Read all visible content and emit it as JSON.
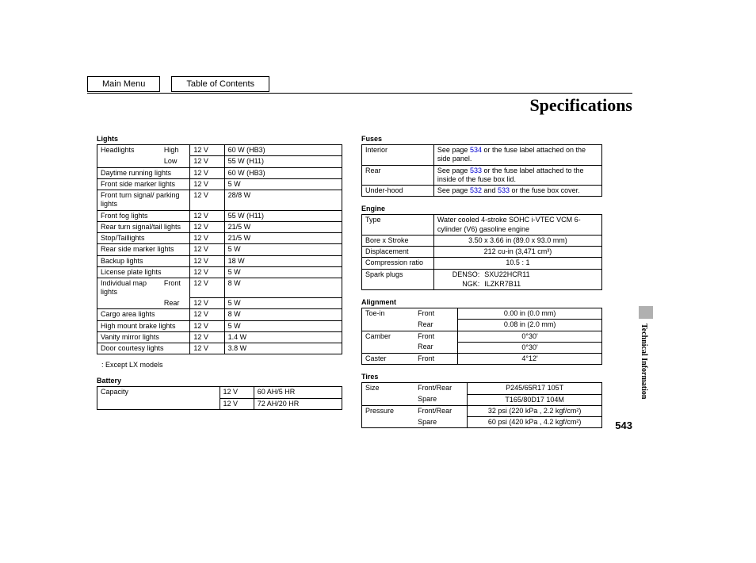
{
  "nav": {
    "main": "Main Menu",
    "toc": "Table of Contents"
  },
  "title": "Specifications",
  "side_label": "Technical Information",
  "page_number": "543",
  "lights": {
    "head": "Lights",
    "rows": [
      {
        "name": "Headlights",
        "sub": "High",
        "v": "12 V",
        "w": "60 W (HB3)"
      },
      {
        "name": "",
        "sub": "Low",
        "v": "12 V",
        "w": "55 W (H11)"
      },
      {
        "name": "Daytime running lights",
        "sub": "",
        "v": "12 V",
        "w": "60 W (HB3)"
      },
      {
        "name": "Front side marker lights",
        "sub": "",
        "v": "12 V",
        "w": "5 W"
      },
      {
        "name": "Front turn signal/ parking lights",
        "sub": "",
        "v": "12 V",
        "w": "28/8 W"
      },
      {
        "name": "Front fog lights",
        "sub": "",
        "v": "12 V",
        "w": "55 W (H11)"
      },
      {
        "name": "Rear turn signal/tail lights",
        "sub": "",
        "v": "12 V",
        "w": "21/5 W"
      },
      {
        "name": "Stop/Taillights",
        "sub": "",
        "v": "12 V",
        "w": "21/5 W"
      },
      {
        "name": "Rear side marker lights",
        "sub": "",
        "v": "12 V",
        "w": "5 W"
      },
      {
        "name": "Backup lights",
        "sub": "",
        "v": "12 V",
        "w": "18 W"
      },
      {
        "name": "License plate lights",
        "sub": "",
        "v": "12 V",
        "w": "5 W"
      },
      {
        "name": "Individual map lights",
        "sub": "Front",
        "v": "12 V",
        "w": "8 W"
      },
      {
        "name": "",
        "sub": "Rear",
        "v": "12 V",
        "w": "5 W"
      },
      {
        "name": "Cargo area lights",
        "sub": "",
        "v": "12 V",
        "w": "8 W"
      },
      {
        "name": "High mount brake lights",
        "sub": "",
        "v": "12 V",
        "w": "5 W"
      },
      {
        "name": "Vanity mirror lights",
        "sub": "",
        "v": "12 V",
        "w": "1.4 W"
      },
      {
        "name": "Door courtesy lights",
        "sub": "",
        "v": "12 V",
        "w": "3.8 W"
      }
    ],
    "footnote": ": Except LX models"
  },
  "battery": {
    "head": "Battery",
    "rows": [
      {
        "name": "Capacity",
        "v": "12 V",
        "w": "60 AH/5 HR"
      },
      {
        "name": "",
        "v": "12 V",
        "w": "72 AH/20 HR"
      }
    ]
  },
  "fuses": {
    "head": "Fuses",
    "rows": [
      {
        "name": "Interior",
        "pre": "See page ",
        "link": "534",
        "post": " or the fuse label attached on the side panel."
      },
      {
        "name": "Rear",
        "pre": "See page ",
        "link": "533",
        "post": " or the fuse label attached to the inside of the fuse box lid."
      },
      {
        "name": "Under-hood",
        "pre": "See page ",
        "link": "532",
        "mid": " and ",
        "link2": "533",
        "post": " or the fuse box cover."
      }
    ]
  },
  "engine": {
    "head": "Engine",
    "type_label": "Type",
    "type_val": "Water cooled 4-stroke SOHC i-VTEC VCM 6-cylinder (V6) gasoline engine",
    "bore_label": "Bore x Stroke",
    "bore_val": "3.50 x 3.66 in (89.0 x 93.0 mm)",
    "disp_label": "Displacement",
    "disp_val": "212 cu-in (3,471 cm³)",
    "comp_label": "Compression ratio",
    "comp_val": "10.5 : 1",
    "spark_label": "Spark plugs",
    "spark_d_m": "DENSO:",
    "spark_d_v": "SXU22HCR11",
    "spark_n_m": "NGK:",
    "spark_n_v": "ILZKR7B11"
  },
  "alignment": {
    "head": "Alignment",
    "rows": [
      {
        "p": "Toe-in",
        "s": "Front",
        "v": "0.00 in (0.0 mm)"
      },
      {
        "p": "",
        "s": "Rear",
        "v": "0.08 in (2.0 mm)"
      },
      {
        "p": "Camber",
        "s": "Front",
        "v": "0°30'"
      },
      {
        "p": "",
        "s": "Rear",
        "v": "0°30'"
      },
      {
        "p": "Caster",
        "s": "Front",
        "v": "4°12'"
      }
    ]
  },
  "tires": {
    "head": "Tires",
    "rows": [
      {
        "p": "Size",
        "s": "Front/Rear",
        "v": "P245/65R17 105T"
      },
      {
        "p": "",
        "s": "Spare",
        "v": "T165/80D17 104M"
      },
      {
        "p": "Pressure",
        "s": "Front/Rear",
        "v": "32 psi (220 kPa , 2.2 kgf/cm²)"
      },
      {
        "p": "",
        "s": "Spare",
        "v": "60 psi (420 kPa , 4.2 kgf/cm²)"
      }
    ]
  }
}
